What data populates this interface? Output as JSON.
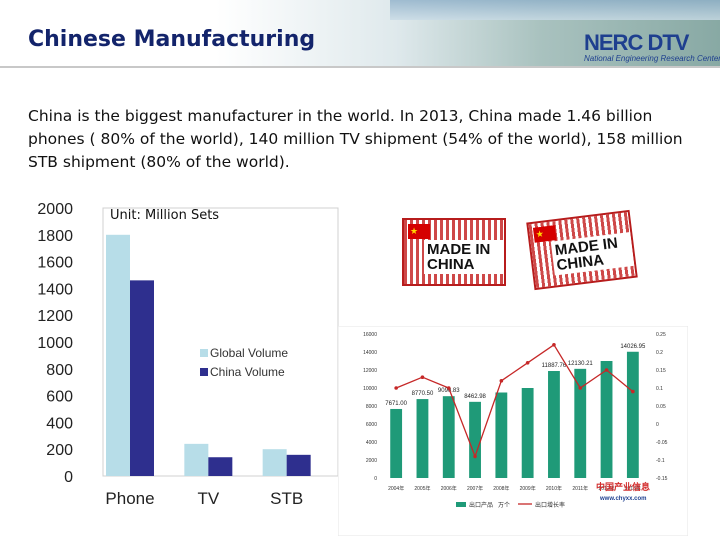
{
  "header": {
    "title": "Chinese Manufacturing",
    "logo_text": "NERC DTV",
    "logo_subtitle": "National Engineering Research Center"
  },
  "intro": {
    "text": "China is the biggest manufacturer in the world. In 2013, China made 1.46 billion phones ( 80% of the world), 140 million TV shipment (54% of the world), 158 million STB shipment (80% of the world)."
  },
  "badges": {
    "made_in_china_1": "MADE IN CHINA",
    "made_in_china_2": "MADE IN CHINA"
  },
  "chart_data": [
    {
      "type": "bar",
      "annotation": "Unit: Million Sets",
      "categories": [
        "Phone",
        "TV",
        "STB"
      ],
      "series": [
        {
          "name": "Global Volume",
          "values": [
            1800,
            240,
            200
          ],
          "color": "#b7dde8"
        },
        {
          "name": "China Volume",
          "values": [
            1460,
            140,
            158
          ],
          "color": "#2e2f8e"
        }
      ],
      "yticks": [
        "0",
        "200",
        "400",
        "600",
        "800",
        "1000",
        "1200",
        "1400",
        "1600",
        "1800",
        "2000"
      ],
      "ylim": [
        0,
        2000
      ],
      "legend": "right"
    },
    {
      "type": "bar",
      "categories": [
        "2004年",
        "2005年",
        "2006年",
        "2007年",
        "2008年",
        "2009年",
        "2010年",
        "2011年",
        "2012年",
        "2013年"
      ],
      "values": [
        7671.0,
        8770.5,
        9090.8,
        8462.98,
        9500,
        10000,
        11887.76,
        12130.21,
        13000,
        14026.95
      ],
      "line_values": [
        0.1,
        0.13,
        0.1,
        -0.09,
        0.12,
        0.17,
        0.22,
        0.1,
        0.15,
        0.09
      ],
      "bar_data_labels": [
        "7671.00",
        "8770.50",
        "9090.83",
        "8462.98",
        "",
        "",
        "11887.76",
        "12130.21",
        "",
        "14026.95"
      ],
      "yticks_left": [
        "0",
        "2000",
        "4000",
        "6000",
        "8000",
        "10000",
        "12000",
        "14000",
        "16000"
      ],
      "yticks_right": [
        "-0.15",
        "-0.1",
        "-0.05",
        "0",
        "0.05",
        "0.1",
        "0.15",
        "0.2",
        "0.25"
      ],
      "ylim": [
        0,
        16000
      ],
      "y2lim": [
        -0.15,
        0.25
      ],
      "legend_items": [
        "出口产品",
        "万个",
        "出口增长率"
      ],
      "watermark": "中国产业信息",
      "watermark_url": "www.chyxx.com",
      "bar_color": "#1f9a78",
      "line_color": "#c62828"
    }
  ]
}
